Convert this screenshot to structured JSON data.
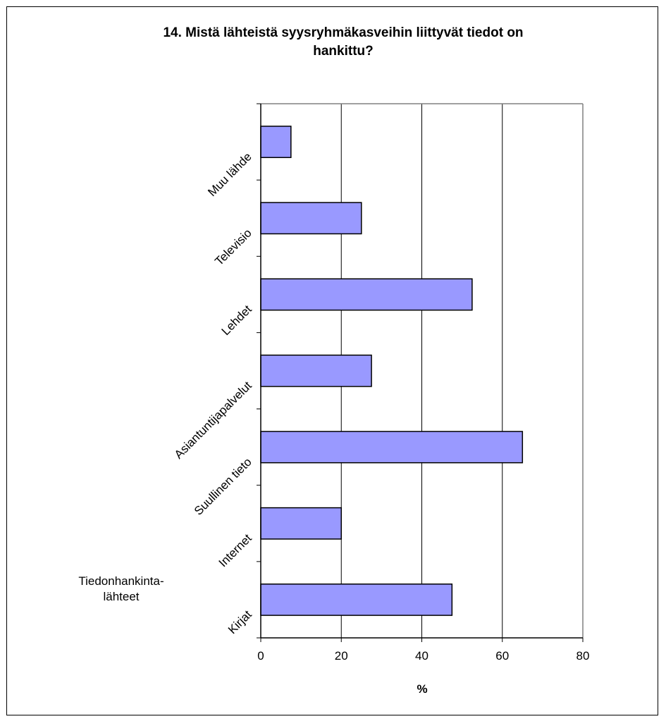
{
  "chart_data": {
    "type": "bar",
    "orientation": "horizontal",
    "title": "14. Mistä lähteistä syysryhmäkasveihin liittyvät tiedot on hankittu?",
    "title_lines": [
      "14. Mistä lähteistä syysryhmäkasveihin liittyvät tiedot on",
      "hankittu?"
    ],
    "categories": [
      "Kirjat",
      "Internet",
      "Suullinen tieto",
      "Asiantuntijapalvelut",
      "Lehdet",
      "Televisio",
      "Muu lähde"
    ],
    "values": [
      47.5,
      20,
      65,
      27.5,
      52.5,
      25,
      7.5
    ],
    "xlabel": "%",
    "ylabel_lines": [
      "Tiedonhankinta-",
      "lähteet"
    ],
    "xlim": [
      0,
      80
    ],
    "xticks": [
      0,
      20,
      40,
      60,
      80
    ],
    "grid": "vertical",
    "bar_color": "#9999ff",
    "bar_edge_color": "#000000",
    "legend": "none"
  }
}
